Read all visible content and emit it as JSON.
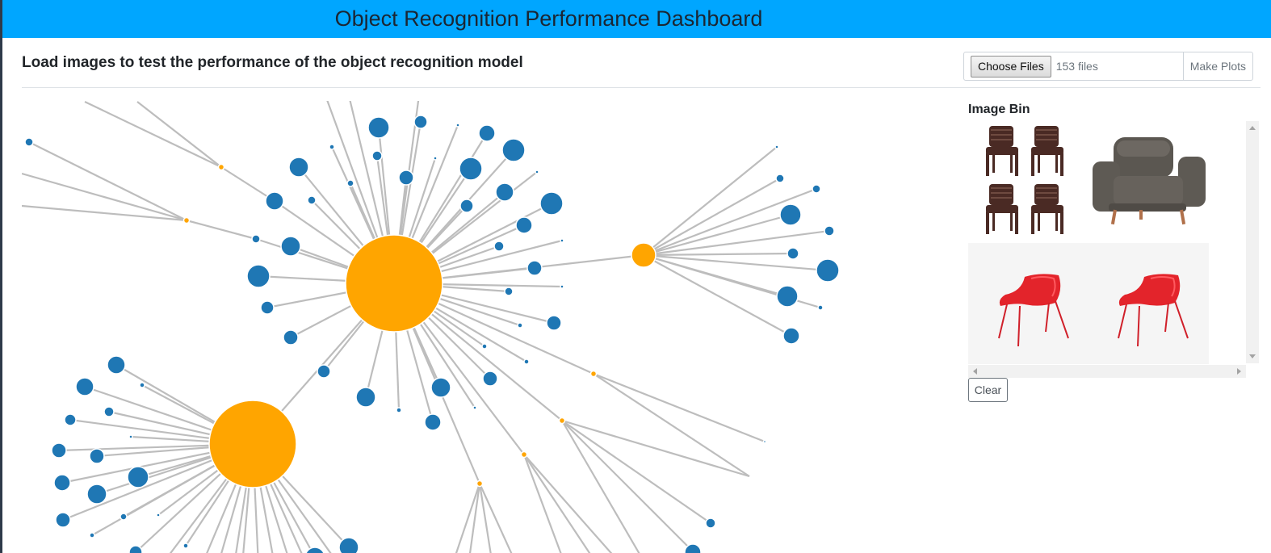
{
  "header": {
    "title": "Object Recognition Performance Dashboard"
  },
  "main": {
    "subtitle": "Load images to test the performance of the object recognition model",
    "upload": {
      "choose_label": "Choose Files",
      "file_count": "153 files",
      "make_plots_label": "Make Plots"
    }
  },
  "image_bin": {
    "title": "Image Bin",
    "clear_label": "Clear",
    "images": [
      "brown-stacking-chairs-image",
      "gray-leather-armchair-image",
      "red-plastic-chairs-image"
    ]
  },
  "colors": {
    "header_bg": "#00a6ff",
    "hub_node": "#ffa500",
    "leaf_node": "#1f77b4",
    "edge": "#bdbdbd"
  }
}
